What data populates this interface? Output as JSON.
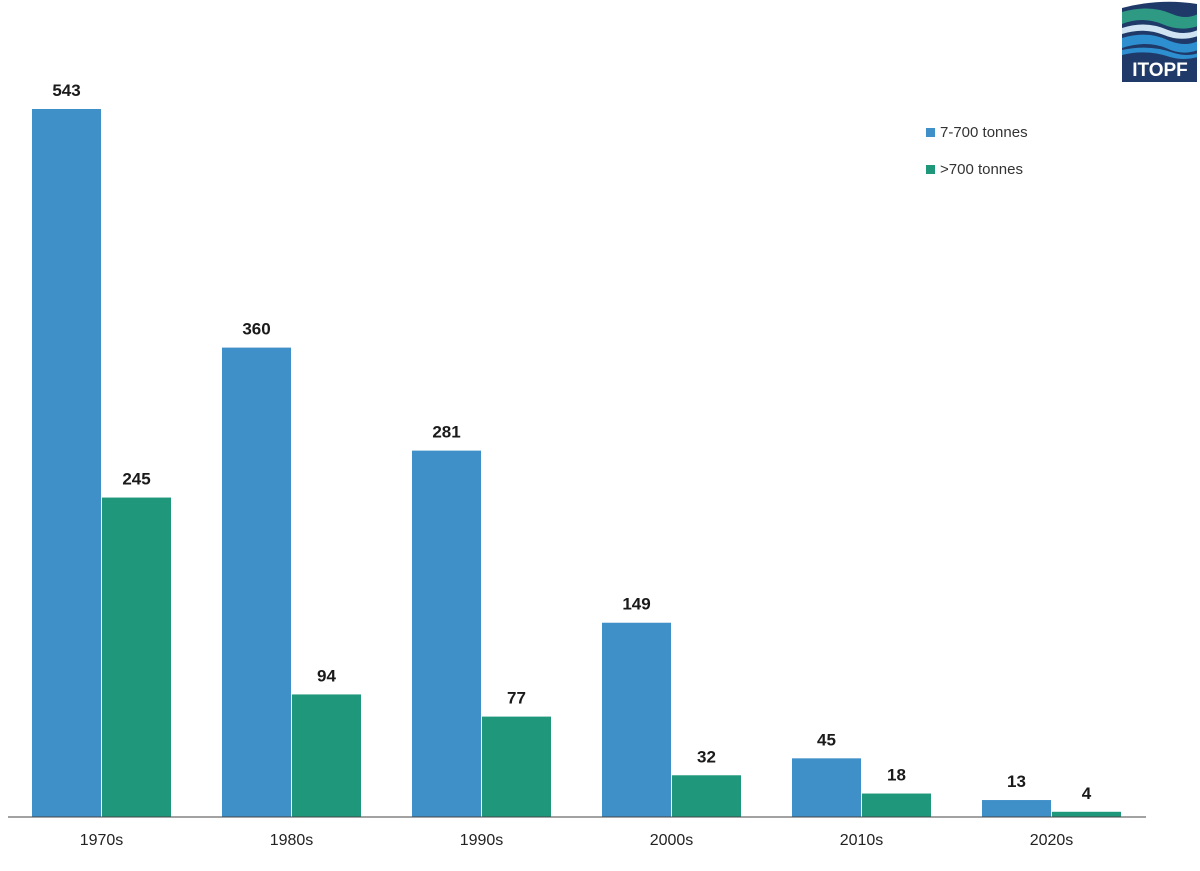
{
  "logo": {
    "text": "ITOPF",
    "colors": {
      "navy": "#1f3a68",
      "blue": "#2e8fd0",
      "green": "#2e9a83",
      "light": "#cfe3f2"
    }
  },
  "legend": {
    "placement": "top-right"
  },
  "chart_data": {
    "type": "bar",
    "title": "",
    "xlabel": "",
    "ylabel": "",
    "categories": [
      "1970s",
      "1980s",
      "1990s",
      "2000s",
      "2010s",
      "2020s"
    ],
    "series": [
      {
        "name": "7-700 tonnes",
        "color": "#3f8fc8",
        "values": [
          543,
          360,
          281,
          149,
          45,
          13
        ]
      },
      {
        "name": ">700 tonnes",
        "color": "#1f977a",
        "values": [
          245,
          94,
          77,
          32,
          18,
          4
        ]
      }
    ],
    "ylim": [
      0,
      543
    ],
    "grid": false,
    "data_labels": true
  }
}
